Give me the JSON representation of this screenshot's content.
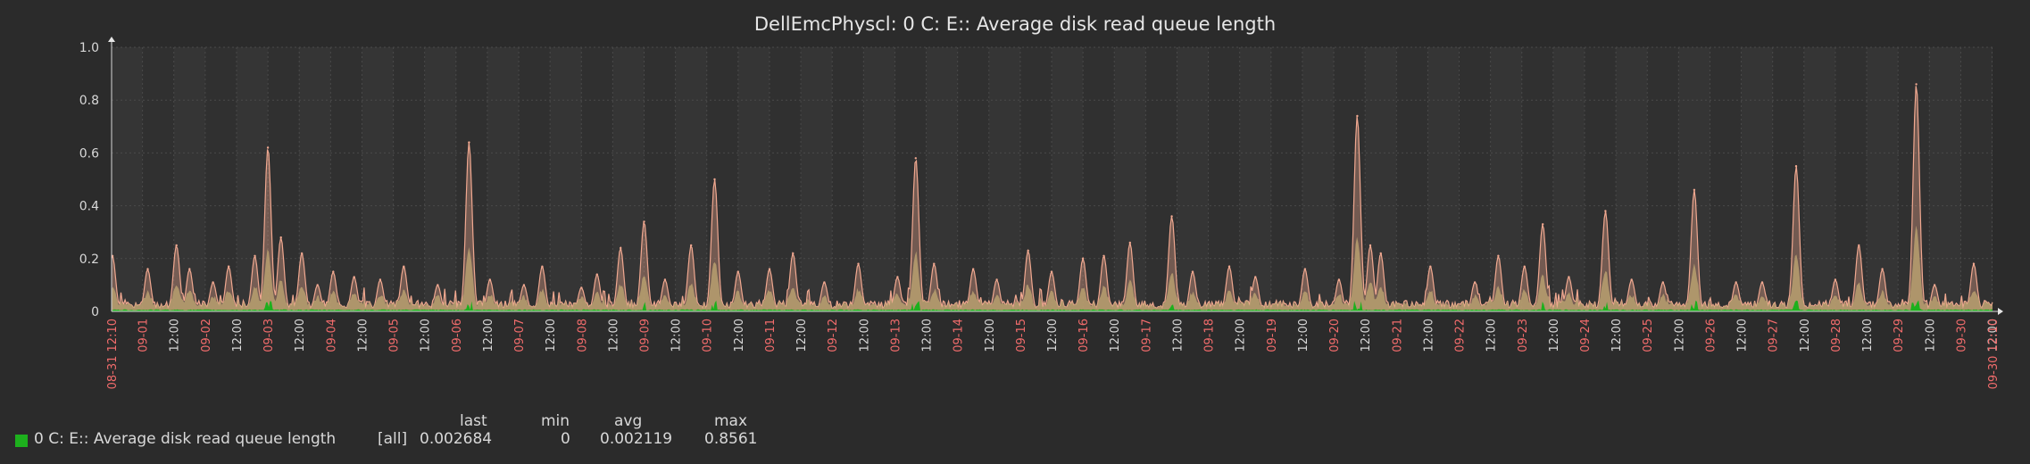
{
  "chart_data": {
    "type": "area",
    "title": "DellEmcPhyscl: 0 C: E:: Average disk read queue length",
    "xlabel": "",
    "ylabel": "",
    "ylim": [
      0,
      1.0
    ],
    "yticks": [
      "0",
      "0.2",
      "0.4",
      "0.6",
      "0.8",
      "1.0"
    ],
    "x_range": [
      "08-31 12:10",
      "09-30 12:10"
    ],
    "x_ticks": [
      {
        "label": "08-31 12:10",
        "kind": "date"
      },
      {
        "label": "09-01",
        "kind": "date"
      },
      {
        "label": "12:00",
        "kind": "time"
      },
      {
        "label": "09-02",
        "kind": "date"
      },
      {
        "label": "12:00",
        "kind": "time"
      },
      {
        "label": "09-03",
        "kind": "date"
      },
      {
        "label": "12:00",
        "kind": "time"
      },
      {
        "label": "09-04",
        "kind": "date"
      },
      {
        "label": "12:00",
        "kind": "time"
      },
      {
        "label": "09-05",
        "kind": "date"
      },
      {
        "label": "12:00",
        "kind": "time"
      },
      {
        "label": "09-06",
        "kind": "date"
      },
      {
        "label": "12:00",
        "kind": "time"
      },
      {
        "label": "09-07",
        "kind": "date"
      },
      {
        "label": "12:00",
        "kind": "time"
      },
      {
        "label": "09-08",
        "kind": "date"
      },
      {
        "label": "12:00",
        "kind": "time"
      },
      {
        "label": "09-09",
        "kind": "date"
      },
      {
        "label": "12:00",
        "kind": "time"
      },
      {
        "label": "09-10",
        "kind": "date"
      },
      {
        "label": "12:00",
        "kind": "time"
      },
      {
        "label": "09-11",
        "kind": "date"
      },
      {
        "label": "12:00",
        "kind": "time"
      },
      {
        "label": "09-12",
        "kind": "date"
      },
      {
        "label": "12:00",
        "kind": "time"
      },
      {
        "label": "09-13",
        "kind": "date"
      },
      {
        "label": "12:00",
        "kind": "time"
      },
      {
        "label": "09-14",
        "kind": "date"
      },
      {
        "label": "12:00",
        "kind": "time"
      },
      {
        "label": "09-15",
        "kind": "date"
      },
      {
        "label": "12:00",
        "kind": "time"
      },
      {
        "label": "09-16",
        "kind": "date"
      },
      {
        "label": "12:00",
        "kind": "time"
      },
      {
        "label": "09-17",
        "kind": "date"
      },
      {
        "label": "12:00",
        "kind": "time"
      },
      {
        "label": "09-18",
        "kind": "date"
      },
      {
        "label": "12:00",
        "kind": "time"
      },
      {
        "label": "09-19",
        "kind": "date"
      },
      {
        "label": "12:00",
        "kind": "time"
      },
      {
        "label": "09-20",
        "kind": "date"
      },
      {
        "label": "12:00",
        "kind": "time"
      },
      {
        "label": "09-21",
        "kind": "date"
      },
      {
        "label": "12:00",
        "kind": "time"
      },
      {
        "label": "09-22",
        "kind": "date"
      },
      {
        "label": "12:00",
        "kind": "time"
      },
      {
        "label": "09-23",
        "kind": "date"
      },
      {
        "label": "12:00",
        "kind": "time"
      },
      {
        "label": "09-24",
        "kind": "date"
      },
      {
        "label": "12:00",
        "kind": "time"
      },
      {
        "label": "09-25",
        "kind": "date"
      },
      {
        "label": "12:00",
        "kind": "time"
      },
      {
        "label": "09-26",
        "kind": "date"
      },
      {
        "label": "12:00",
        "kind": "time"
      },
      {
        "label": "09-27",
        "kind": "date"
      },
      {
        "label": "12:00",
        "kind": "time"
      },
      {
        "label": "09-28",
        "kind": "date"
      },
      {
        "label": "12:00",
        "kind": "time"
      },
      {
        "label": "09-29",
        "kind": "date"
      },
      {
        "label": "12:00",
        "kind": "time"
      },
      {
        "label": "09-30",
        "kind": "date"
      },
      {
        "label": "12:00",
        "kind": "time"
      },
      {
        "label": "09-30 12:10",
        "kind": "date"
      }
    ],
    "series": [
      {
        "name": "0 C: E:: Average disk read queue length",
        "color": "#1db01d",
        "max_color": "#f0a890",
        "avg_color": "#b8a070",
        "peaks": [
          {
            "date": "08-31",
            "hour": 12.5,
            "value": 0.21
          },
          {
            "date": "09-01",
            "hour": 2,
            "value": 0.16
          },
          {
            "date": "09-01",
            "hour": 13,
            "value": 0.25
          },
          {
            "date": "09-01",
            "hour": 18,
            "value": 0.16
          },
          {
            "date": "09-02",
            "hour": 3,
            "value": 0.11
          },
          {
            "date": "09-02",
            "hour": 9,
            "value": 0.17
          },
          {
            "date": "09-02",
            "hour": 19,
            "value": 0.21
          },
          {
            "date": "09-03",
            "hour": 0,
            "value": 0.62
          },
          {
            "date": "09-03",
            "hour": 5,
            "value": 0.28
          },
          {
            "date": "09-03",
            "hour": 13,
            "value": 0.22
          },
          {
            "date": "09-03",
            "hour": 19,
            "value": 0.1
          },
          {
            "date": "09-04",
            "hour": 1,
            "value": 0.15
          },
          {
            "date": "09-04",
            "hour": 9,
            "value": 0.13
          },
          {
            "date": "09-04",
            "hour": 19,
            "value": 0.12
          },
          {
            "date": "09-05",
            "hour": 4,
            "value": 0.17
          },
          {
            "date": "09-05",
            "hour": 17,
            "value": 0.1
          },
          {
            "date": "09-06",
            "hour": 5,
            "value": 0.64
          },
          {
            "date": "09-06",
            "hour": 13,
            "value": 0.12
          },
          {
            "date": "09-07",
            "hour": 2,
            "value": 0.1
          },
          {
            "date": "09-07",
            "hour": 9,
            "value": 0.17
          },
          {
            "date": "09-08",
            "hour": 0,
            "value": 0.09
          },
          {
            "date": "09-08",
            "hour": 6,
            "value": 0.14
          },
          {
            "date": "09-08",
            "hour": 15,
            "value": 0.24
          },
          {
            "date": "09-09",
            "hour": 0,
            "value": 0.34
          },
          {
            "date": "09-09",
            "hour": 8,
            "value": 0.12
          },
          {
            "date": "09-09",
            "hour": 18,
            "value": 0.25
          },
          {
            "date": "09-10",
            "hour": 3,
            "value": 0.5
          },
          {
            "date": "09-10",
            "hour": 12,
            "value": 0.15
          },
          {
            "date": "09-11",
            "hour": 0,
            "value": 0.16
          },
          {
            "date": "09-11",
            "hour": 9,
            "value": 0.22
          },
          {
            "date": "09-11",
            "hour": 21,
            "value": 0.11
          },
          {
            "date": "09-12",
            "hour": 10,
            "value": 0.18
          },
          {
            "date": "09-13",
            "hour": 1,
            "value": 0.13
          },
          {
            "date": "09-13",
            "hour": 8,
            "value": 0.58
          },
          {
            "date": "09-13",
            "hour": 15,
            "value": 0.18
          },
          {
            "date": "09-14",
            "hour": 6,
            "value": 0.16
          },
          {
            "date": "09-14",
            "hour": 15,
            "value": 0.12
          },
          {
            "date": "09-15",
            "hour": 3,
            "value": 0.23
          },
          {
            "date": "09-15",
            "hour": 12,
            "value": 0.15
          },
          {
            "date": "09-16",
            "hour": 0,
            "value": 0.2
          },
          {
            "date": "09-16",
            "hour": 8,
            "value": 0.21
          },
          {
            "date": "09-16",
            "hour": 18,
            "value": 0.26
          },
          {
            "date": "09-17",
            "hour": 10,
            "value": 0.36
          },
          {
            "date": "09-17",
            "hour": 18,
            "value": 0.15
          },
          {
            "date": "09-18",
            "hour": 8,
            "value": 0.17
          },
          {
            "date": "09-18",
            "hour": 18,
            "value": 0.13
          },
          {
            "date": "09-19",
            "hour": 13,
            "value": 0.16
          },
          {
            "date": "09-20",
            "hour": 2,
            "value": 0.12
          },
          {
            "date": "09-20",
            "hour": 9,
            "value": 0.74
          },
          {
            "date": "09-20",
            "hour": 14,
            "value": 0.25
          },
          {
            "date": "09-20",
            "hour": 18,
            "value": 0.22
          },
          {
            "date": "09-21",
            "hour": 13,
            "value": 0.17
          },
          {
            "date": "09-22",
            "hour": 6,
            "value": 0.11
          },
          {
            "date": "09-22",
            "hour": 15,
            "value": 0.21
          },
          {
            "date": "09-23",
            "hour": 1,
            "value": 0.17
          },
          {
            "date": "09-23",
            "hour": 8,
            "value": 0.33
          },
          {
            "date": "09-23",
            "hour": 18,
            "value": 0.13
          },
          {
            "date": "09-24",
            "hour": 8,
            "value": 0.38
          },
          {
            "date": "09-24",
            "hour": 18,
            "value": 0.12
          },
          {
            "date": "09-25",
            "hour": 6,
            "value": 0.11
          },
          {
            "date": "09-25",
            "hour": 18,
            "value": 0.46
          },
          {
            "date": "09-26",
            "hour": 10,
            "value": 0.11
          },
          {
            "date": "09-26",
            "hour": 20,
            "value": 0.11
          },
          {
            "date": "09-27",
            "hour": 9,
            "value": 0.55
          },
          {
            "date": "09-28",
            "hour": 0,
            "value": 0.12
          },
          {
            "date": "09-28",
            "hour": 9,
            "value": 0.25
          },
          {
            "date": "09-28",
            "hour": 18,
            "value": 0.16
          },
          {
            "date": "09-29",
            "hour": 7,
            "value": 0.86
          },
          {
            "date": "09-29",
            "hour": 14,
            "value": 0.1
          },
          {
            "date": "09-30",
            "hour": 5,
            "value": 0.18
          }
        ]
      }
    ],
    "legend": {
      "headers": [
        "last",
        "min",
        "avg",
        "max"
      ],
      "label": "0 C: E:: Average disk read queue length",
      "function": "[all]",
      "last": "0.002684",
      "min": "0",
      "avg": "0.002119",
      "max": "0.8561"
    },
    "colors": {
      "background": "#2b2b2b",
      "plot_background": "#353535",
      "plot_band": "#303030",
      "grid": "#4a4a4a",
      "date_tick": "#f26c6c",
      "time_tick": "#d8d8d8"
    }
  }
}
